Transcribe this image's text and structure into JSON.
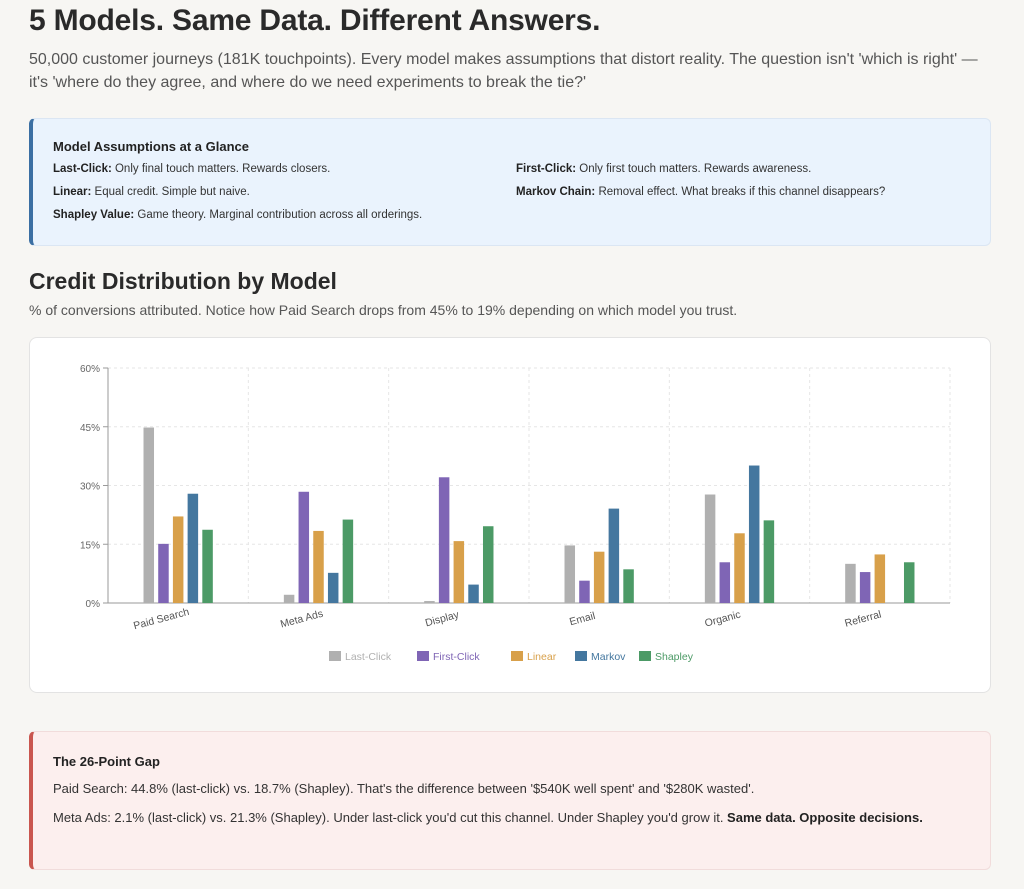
{
  "header": {
    "title": "5 Models. Same Data. Different Answers.",
    "intro": "50,000 customer journeys (181K touchpoints). Every model makes assumptions that distort reality. The question isn't 'which is right' — it's 'where do they agree, and where do we need experiments to break the tie?'"
  },
  "assumptions": {
    "heading": "Model Assumptions at a Glance",
    "items": [
      {
        "name": "Last-Click:",
        "text": " Only final touch matters. Rewards closers."
      },
      {
        "name": "First-Click:",
        "text": " Only first touch matters. Rewards awareness."
      },
      {
        "name": "Linear:",
        "text": " Equal credit. Simple but naive."
      },
      {
        "name": "Markov Chain:",
        "text": " Removal effect. What breaks if this channel disappears?"
      },
      {
        "name": "Shapley Value:",
        "text": " Game theory. Marginal contribution across all orderings."
      }
    ]
  },
  "section": {
    "title": "Credit Distribution by Model",
    "subtitle": "% of conversions attributed. Notice how Paid Search drops from 45% to 19% depending on which model you trust."
  },
  "chart_data": {
    "type": "bar",
    "categories": [
      "Paid Search",
      "Meta Ads",
      "Display",
      "Email",
      "Organic",
      "Referral"
    ],
    "series": [
      {
        "name": "Last-Click",
        "color": "#b0b0b0",
        "values": [
          44.8,
          2.1,
          0.5,
          14.7,
          27.7,
          10.0
        ]
      },
      {
        "name": "First-Click",
        "color": "#7f65b5",
        "values": [
          15.1,
          28.4,
          32.1,
          5.7,
          10.4,
          7.9
        ]
      },
      {
        "name": "Linear",
        "color": "#d8a04a",
        "values": [
          22.1,
          18.4,
          15.8,
          13.1,
          17.8,
          12.4
        ]
      },
      {
        "name": "Markov",
        "color": "#44779f",
        "values": [
          27.9,
          7.7,
          4.7,
          24.1,
          35.1,
          0
        ]
      },
      {
        "name": "Shapley",
        "color": "#4c9a66",
        "values": [
          18.7,
          21.3,
          19.6,
          8.6,
          21.1,
          10.4
        ]
      }
    ],
    "yticks": [
      "0%",
      "15%",
      "30%",
      "45%",
      "60%"
    ],
    "ylim": [
      0,
      60
    ],
    "grid": true,
    "legend": "bottom"
  },
  "gap": {
    "heading": "The 26-Point Gap",
    "p1": "Paid Search: 44.8% (last-click) vs. 18.7% (Shapley). That's the difference between '$540K well spent' and '$280K wasted'.",
    "p2": "Meta Ads: 2.1% (last-click) vs. 21.3% (Shapley). Under last-click you'd cut this channel. Under Shapley you'd grow it. ",
    "p2_bold": "Same data. Opposite decisions."
  }
}
